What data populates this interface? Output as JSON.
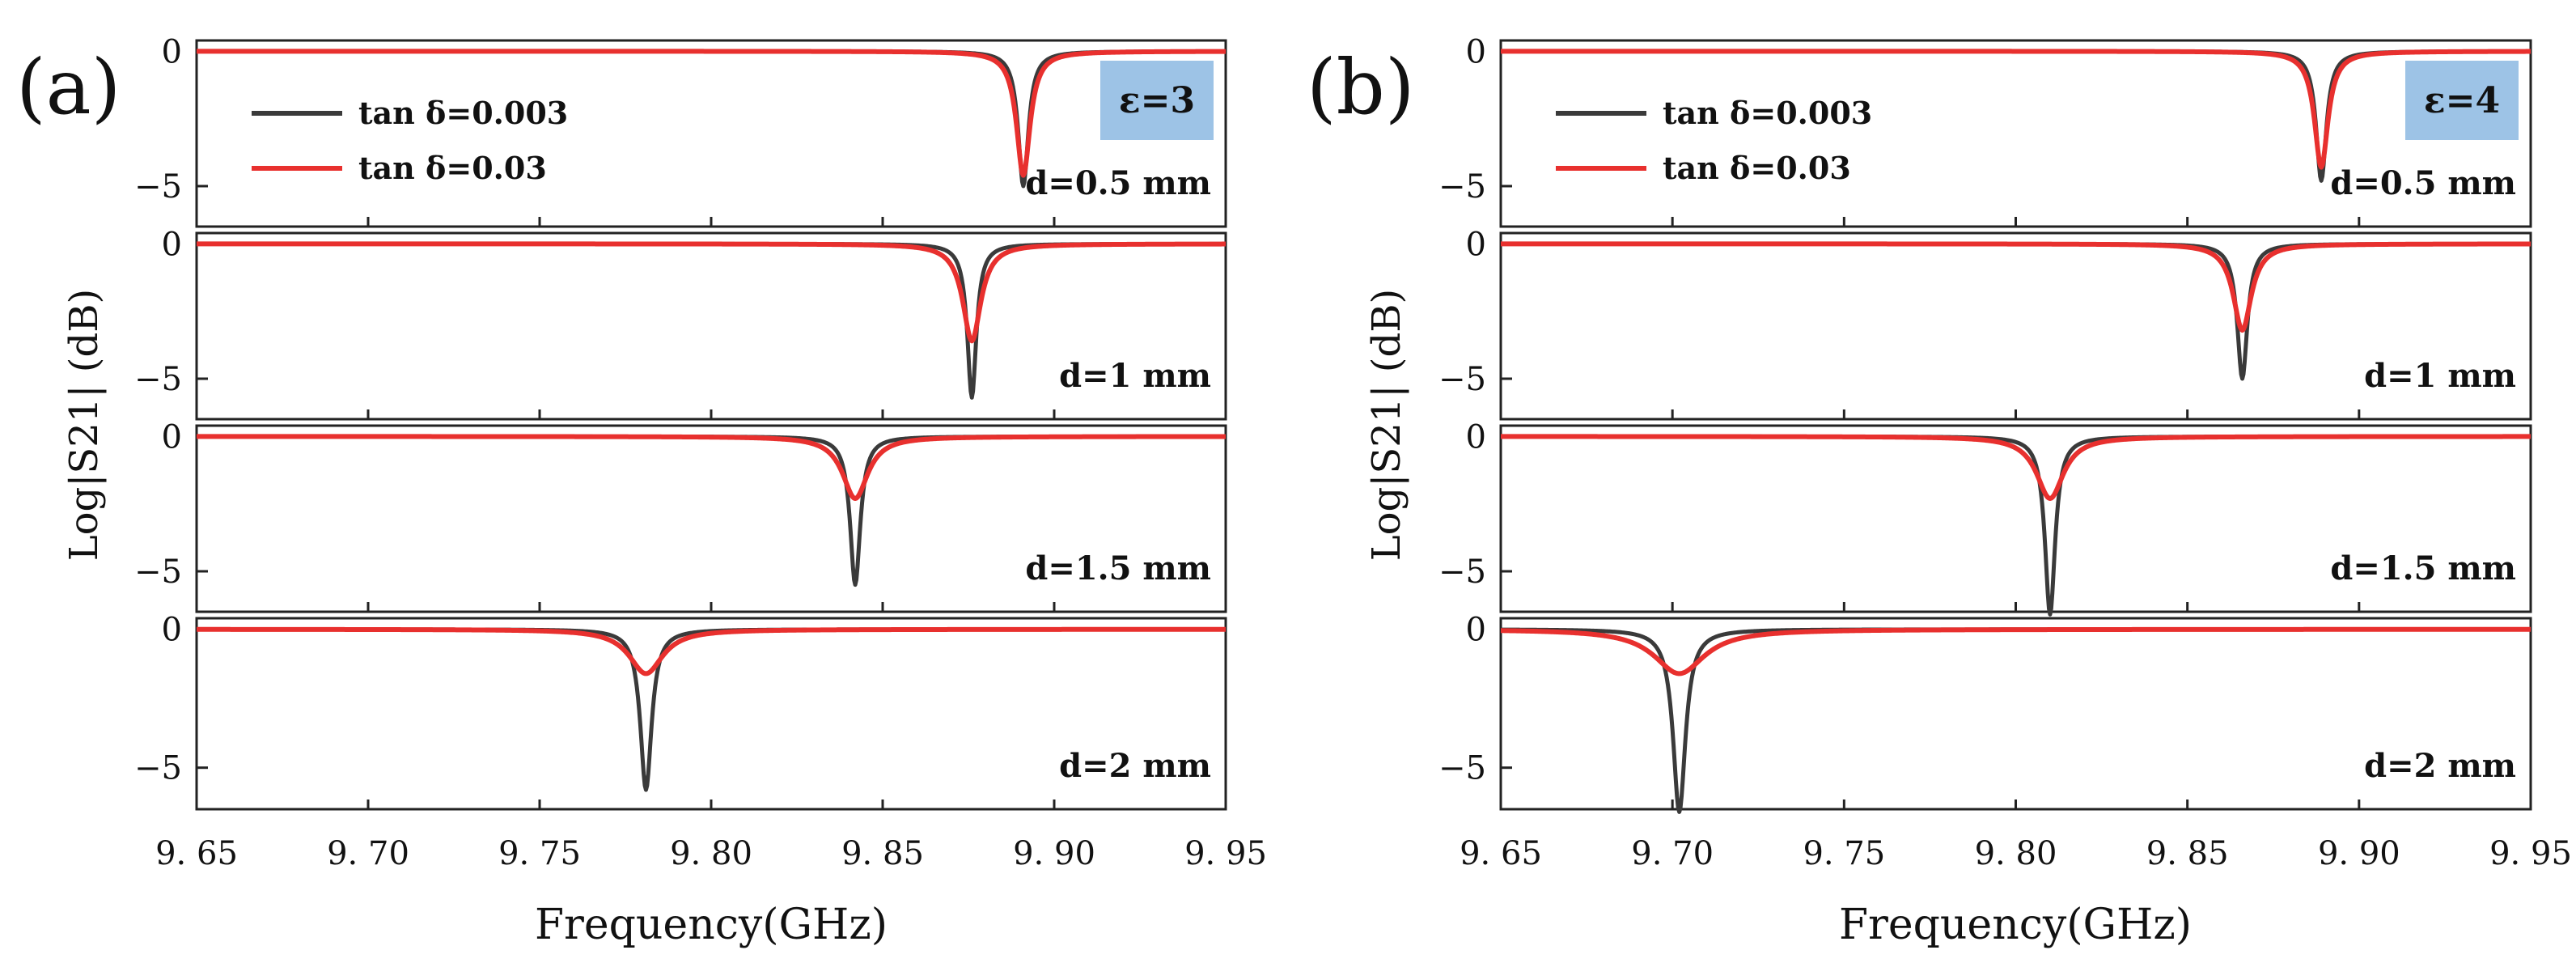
{
  "chart_data": [
    {
      "type": "line",
      "panel_label": "(a)",
      "epsilon_label": "ε=3",
      "xlabel": "Frequency(GHz)",
      "ylabel": "Log|S21| (dB)",
      "x_ticks": [
        "9. 65",
        "9. 70",
        "9. 75",
        "9. 80",
        "9. 85",
        "9. 90",
        "9. 95"
      ],
      "xlim": [
        9.65,
        9.95
      ],
      "legend": [
        {
          "name": "tan δ=0.003",
          "color": "#3a3a3a"
        },
        {
          "name": "tan δ=0.03",
          "color": "#e8302e"
        }
      ],
      "subplots": [
        {
          "label": "d=0.5 mm",
          "ylim": [
            -6.5,
            0.4
          ],
          "y_ticks": [
            "0",
            "−5"
          ],
          "series": [
            {
              "name": "tan δ=0.003",
              "center": 9.891,
              "depth": 5.0,
              "width": 0.0018
            },
            {
              "name": "tan δ=0.03",
              "center": 9.891,
              "depth": 4.6,
              "width": 0.0024
            }
          ]
        },
        {
          "label": "d=1 mm",
          "ylim": [
            -6.5,
            0.4
          ],
          "y_ticks": [
            "0",
            "−5"
          ],
          "series": [
            {
              "name": "tan δ=0.003",
              "center": 9.876,
              "depth": 5.7,
              "width": 0.0016
            },
            {
              "name": "tan δ=0.03",
              "center": 9.876,
              "depth": 3.6,
              "width": 0.0032
            }
          ]
        },
        {
          "label": "d=1.5 mm",
          "ylim": [
            -6.5,
            0.4
          ],
          "y_ticks": [
            "0",
            "−5"
          ],
          "series": [
            {
              "name": "tan δ=0.003",
              "center": 9.842,
              "depth": 5.5,
              "width": 0.0018
            },
            {
              "name": "tan δ=0.03",
              "center": 9.842,
              "depth": 2.3,
              "width": 0.0045
            }
          ]
        },
        {
          "label": "d=2 mm",
          "ylim": [
            -6.5,
            0.4
          ],
          "y_ticks": [
            "0",
            "−5"
          ],
          "series": [
            {
              "name": "tan δ=0.003",
              "center": 9.781,
              "depth": 5.8,
              "width": 0.002
            },
            {
              "name": "tan δ=0.03",
              "center": 9.781,
              "depth": 1.6,
              "width": 0.006
            }
          ]
        }
      ]
    },
    {
      "type": "line",
      "panel_label": "(b)",
      "epsilon_label": "ε=4",
      "xlabel": "Frequency(GHz)",
      "ylabel": "Log|S21| (dB)",
      "x_ticks": [
        "9. 65",
        "9. 70",
        "9. 75",
        "9. 80",
        "9. 85",
        "9. 90",
        "9. 95"
      ],
      "xlim": [
        9.65,
        9.95
      ],
      "legend": [
        {
          "name": "tan δ=0.003",
          "color": "#3a3a3a"
        },
        {
          "name": "tan δ=0.03",
          "color": "#e8302e"
        }
      ],
      "subplots": [
        {
          "label": "d=0.5 mm",
          "ylim": [
            -6.5,
            0.4
          ],
          "y_ticks": [
            "0",
            "−5"
          ],
          "series": [
            {
              "name": "tan δ=0.003",
              "center": 9.889,
              "depth": 4.8,
              "width": 0.0018
            },
            {
              "name": "tan δ=0.03",
              "center": 9.889,
              "depth": 4.3,
              "width": 0.0024
            }
          ]
        },
        {
          "label": "d=1 mm",
          "ylim": [
            -6.5,
            0.4
          ],
          "y_ticks": [
            "0",
            "−5"
          ],
          "series": [
            {
              "name": "tan δ=0.003",
              "center": 9.866,
              "depth": 5.0,
              "width": 0.0018
            },
            {
              "name": "tan δ=0.03",
              "center": 9.866,
              "depth": 3.2,
              "width": 0.0032
            }
          ]
        },
        {
          "label": "d=1.5 mm",
          "ylim": [
            -6.5,
            0.4
          ],
          "y_ticks": [
            "0",
            "−5"
          ],
          "series": [
            {
              "name": "tan δ=0.003",
              "center": 9.81,
              "depth": 6.6,
              "width": 0.0018
            },
            {
              "name": "tan δ=0.03",
              "center": 9.81,
              "depth": 2.3,
              "width": 0.0048
            }
          ]
        },
        {
          "label": "d=2 mm",
          "ylim": [
            -6.5,
            0.4
          ],
          "y_ticks": [
            "0",
            "−5"
          ],
          "series": [
            {
              "name": "tan δ=0.003",
              "center": 9.702,
              "depth": 6.6,
              "width": 0.0022
            },
            {
              "name": "tan δ=0.03",
              "center": 9.702,
              "depth": 1.6,
              "width": 0.009
            }
          ]
        }
      ]
    }
  ],
  "colors": {
    "series_low_loss": "#3a3a3a",
    "series_high_loss": "#e8302e",
    "epsilon_badge": "#9dc3e6",
    "frame": "#222222"
  }
}
